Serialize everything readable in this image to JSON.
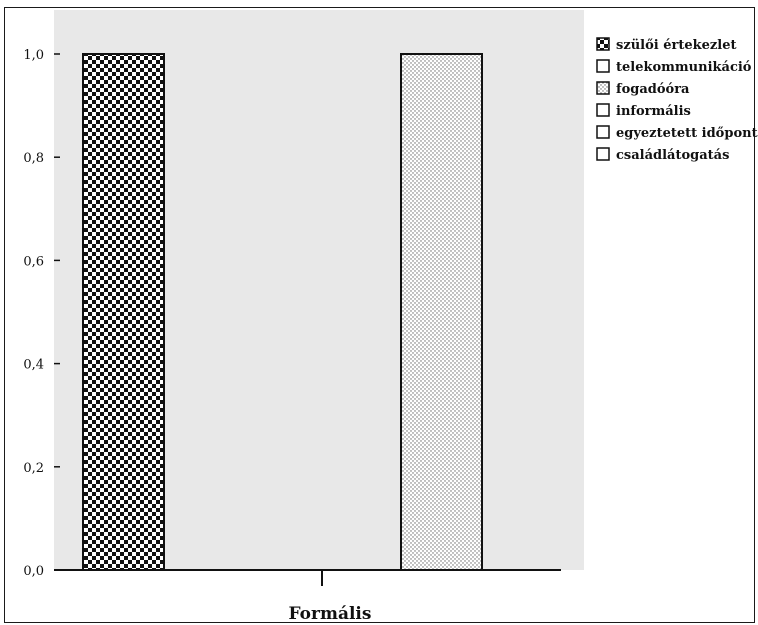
{
  "chart_data": {
    "type": "bar",
    "categories": [
      "Formális"
    ],
    "series": [
      {
        "name": "szülői értekezlet",
        "values": [
          1.0
        ],
        "pattern": "checker"
      },
      {
        "name": "telekommunikáció",
        "values": [
          0.0
        ],
        "pattern": "none"
      },
      {
        "name": "fogadóóra",
        "values": [
          1.0
        ],
        "pattern": "dots"
      },
      {
        "name": "informális",
        "values": [
          0.0
        ],
        "pattern": "none"
      },
      {
        "name": "egyeztetett időpont",
        "values": [
          0.0
        ],
        "pattern": "none"
      },
      {
        "name": "családlátogatás",
        "values": [
          0.0
        ],
        "pattern": "none"
      }
    ],
    "title": "",
    "xlabel": "",
    "ylabel": "",
    "ylim": [
      0,
      1.0
    ],
    "yticks": [
      "0,0",
      "0,2",
      "0,4",
      "0,6",
      "0,8",
      "1,0"
    ],
    "grid": false,
    "legend_position": "right",
    "colors": {
      "plot_background": "#e8e8e8",
      "bar_fill": "#ffffff",
      "bar_stroke": "#111111",
      "pattern_ink": "#111111",
      "dot_ink": "#666666"
    }
  }
}
